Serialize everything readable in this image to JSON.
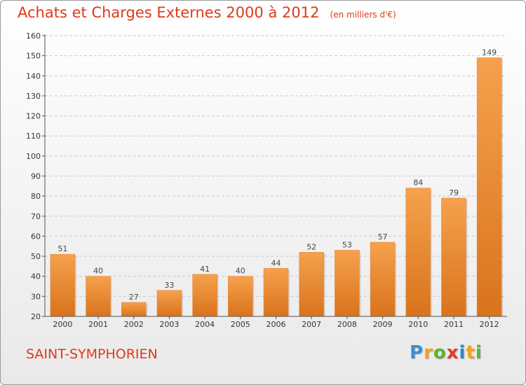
{
  "chart_data": {
    "type": "bar",
    "title": "Achats et Charges Externes 2000 à 2012",
    "subtitle": "(en milliers d'€)",
    "categories": [
      "2000",
      "2001",
      "2002",
      "2003",
      "2004",
      "2005",
      "2006",
      "2007",
      "2008",
      "2009",
      "2010",
      "2011",
      "2012"
    ],
    "values": [
      51,
      40,
      27,
      33,
      41,
      40,
      44,
      52,
      53,
      57,
      84,
      79,
      149
    ],
    "ylim": [
      20,
      160
    ],
    "yticks": [
      20,
      30,
      40,
      50,
      60,
      70,
      80,
      90,
      100,
      110,
      120,
      130,
      140,
      150,
      160
    ],
    "grid": true,
    "xlabel": "",
    "ylabel": "",
    "colors": {
      "bar_light": "#f6a14d",
      "bar_dark": "#d9731c",
      "title": "#df3a16"
    }
  },
  "commune": "SAINT-SYMPHORIEN",
  "logo": {
    "letters": [
      "P",
      "r",
      "o",
      "x",
      "i",
      "t",
      "i"
    ],
    "colors": [
      "#3a8fd6",
      "#f0a21c",
      "#5cb531",
      "#e23c2a",
      "#2f84cf",
      "#f0a21c",
      "#5cb531"
    ]
  }
}
